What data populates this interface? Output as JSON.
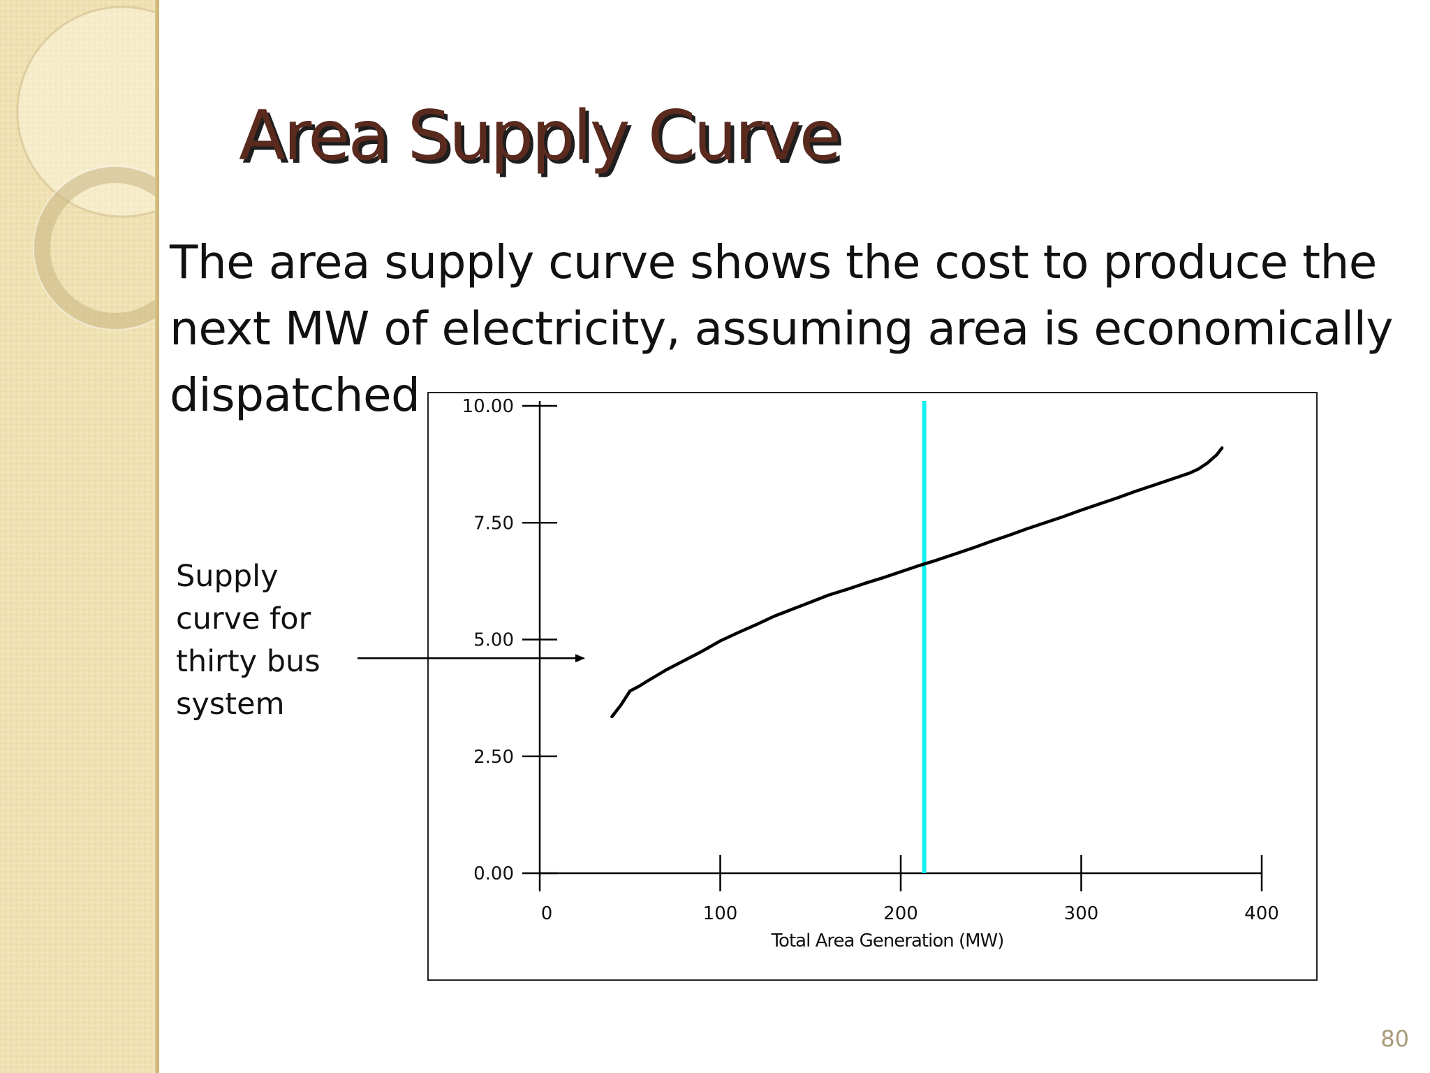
{
  "slide": {
    "title": "Area Supply Curve",
    "body": "The area supply curve shows the cost to produce the next MW of electricity, assuming area is economically dispatched",
    "callout": "Supply curve for thirty bus system",
    "page_number": "80"
  },
  "colors": {
    "title": "#5a2a1e",
    "side_band": "#efe1b2",
    "curve": "#000000",
    "marker_line": "#18f0f0"
  },
  "chart_data": {
    "type": "line",
    "title": "",
    "xlabel": "Total Area Generation (MW)",
    "ylabel": "",
    "xlim": [
      0,
      400
    ],
    "ylim": [
      0,
      10
    ],
    "x_ticks": [
      0,
      100,
      200,
      300,
      400
    ],
    "x_tick_labels": [
      "0",
      "100",
      "200",
      "300",
      "400"
    ],
    "y_ticks": [
      0,
      2.5,
      5,
      7.5,
      10
    ],
    "y_tick_labels": [
      "0.00",
      "2.50",
      "5.00",
      "7.50",
      "10.00"
    ],
    "grid": false,
    "legend": "none",
    "series": [
      {
        "x": [
          40,
          45,
          50,
          55,
          60,
          70,
          80,
          90,
          100,
          110,
          120,
          130,
          140,
          150,
          160,
          170,
          180,
          190,
          200,
          210,
          220,
          230,
          240,
          250,
          260,
          270,
          280,
          290,
          300,
          310,
          320,
          330,
          340,
          350,
          360,
          365,
          370,
          375,
          378
        ],
        "y": [
          3.35,
          3.6,
          3.9,
          4.0,
          4.12,
          4.35,
          4.55,
          4.75,
          4.97,
          5.15,
          5.32,
          5.5,
          5.65,
          5.8,
          5.95,
          6.07,
          6.2,
          6.32,
          6.45,
          6.58,
          6.7,
          6.83,
          6.96,
          7.1,
          7.23,
          7.37,
          7.5,
          7.63,
          7.77,
          7.9,
          8.03,
          8.17,
          8.3,
          8.43,
          8.56,
          8.65,
          8.78,
          8.95,
          9.1
        ]
      }
    ],
    "vertical_marker_x": 213,
    "annotation_arrow_y": 4.6
  }
}
